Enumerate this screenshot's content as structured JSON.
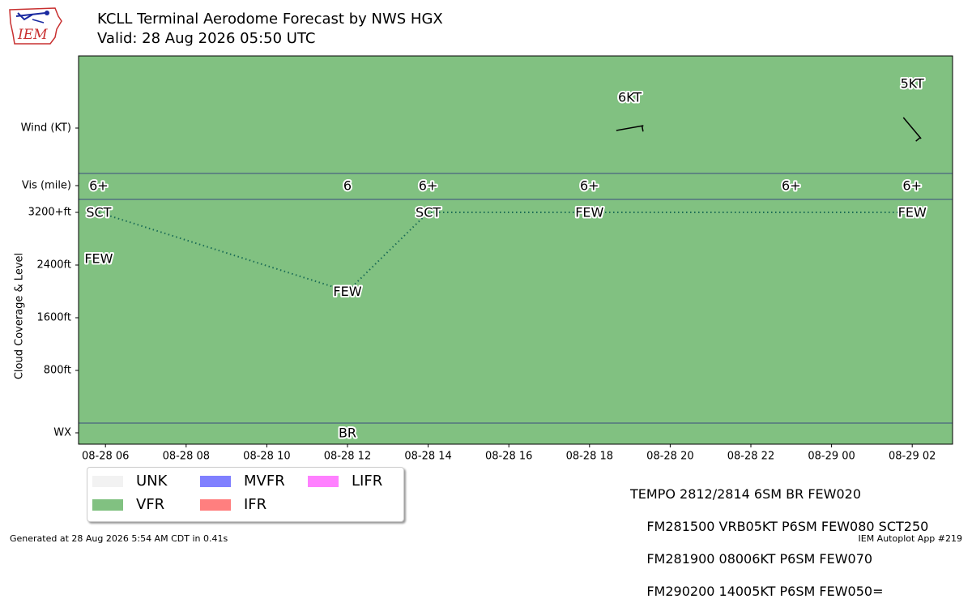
{
  "header": {
    "title": "KCLL Terminal Aerodome Forecast by NWS HGX",
    "subtitle": "Valid: 28 Aug 2026 05:50 UTC"
  },
  "logo": {
    "text": "IEM",
    "icon": "iowa-state-logo-icon"
  },
  "colors": {
    "vfr": "#81c181",
    "unk": "#f2f2f2",
    "mvfr": "#8080ff",
    "ifr": "#ff7f7f",
    "lifr": "#ff80ff",
    "divider": "#3a4a80",
    "cloud_line": "#1a6b55"
  },
  "chart_data": {
    "type": "line",
    "title": "KCLL Terminal Aerodome Forecast by NWS HGX",
    "subtitle": "Valid: 28 Aug 2026 05:50 UTC",
    "ylabel": "Cloud Coverage & Level",
    "row_labels": [
      "Wind (KT)",
      "Vis (mile)",
      "WX"
    ],
    "x_range": [
      "2026-08-28 05:20",
      "2026-08-29 03:00"
    ],
    "x_ticks": [
      "2026-08-28 06:00",
      "2026-08-28 08:00",
      "2026-08-28 10:00",
      "2026-08-28 12:00",
      "2026-08-28 14:00",
      "2026-08-28 16:00",
      "2026-08-28 18:00",
      "2026-08-28 20:00",
      "2026-08-28 22:00",
      "2026-08-29 00:00",
      "2026-08-29 02:00"
    ],
    "x_tick_labels": [
      "08-28 06",
      "08-28 08",
      "08-28 10",
      "08-28 12",
      "08-28 14",
      "08-28 16",
      "08-28 18",
      "08-28 20",
      "08-28 22",
      "08-29 00",
      "08-29 02"
    ],
    "y_ticks": [
      800,
      1600,
      2400,
      3200
    ],
    "y_tick_labels": [
      "800ft",
      "1600ft",
      "2400ft",
      "3200+ft"
    ],
    "ylim": [
      0,
      3200
    ],
    "background_category": "VFR",
    "wind": [
      {
        "x": "2026-08-28 19:00",
        "label": "6KT",
        "direction_deg": 80,
        "speed_kt": 6
      },
      {
        "x": "2026-08-29 02:00",
        "label": "5KT",
        "direction_deg": 140,
        "speed_kt": 5
      }
    ],
    "visibility": [
      {
        "x": "2026-08-28 05:50",
        "label": "6+"
      },
      {
        "x": "2026-08-28 12:00",
        "label": "6"
      },
      {
        "x": "2026-08-28 14:00",
        "label": "6+"
      },
      {
        "x": "2026-08-28 18:00",
        "label": "6+"
      },
      {
        "x": "2026-08-28 23:00",
        "label": "6+"
      },
      {
        "x": "2026-08-29 02:00",
        "label": "6+"
      }
    ],
    "clouds": [
      {
        "x": "2026-08-28 05:50",
        "level_ft": 3200,
        "coverage": "SCT"
      },
      {
        "x": "2026-08-28 05:50",
        "level_ft": 2500,
        "coverage": "FEW"
      },
      {
        "x": "2026-08-28 12:00",
        "level_ft": 2000,
        "coverage": "FEW"
      },
      {
        "x": "2026-08-28 14:00",
        "level_ft": 3200,
        "coverage": "SCT"
      },
      {
        "x": "2026-08-28 18:00",
        "level_ft": 3200,
        "coverage": "FEW"
      },
      {
        "x": "2026-08-29 02:00",
        "level_ft": 3200,
        "coverage": "FEW"
      }
    ],
    "cloud_line": [
      {
        "x": "2026-08-28 05:50",
        "level_ft": 3200
      },
      {
        "x": "2026-08-28 12:00",
        "level_ft": 2000
      },
      {
        "x": "2026-08-28 14:00",
        "level_ft": 3200
      },
      {
        "x": "2026-08-29 02:00",
        "level_ft": 3200
      }
    ],
    "weather": [
      {
        "x": "2026-08-28 12:00",
        "label": "BR"
      }
    ]
  },
  "legend": [
    {
      "label": "UNK",
      "color_key": "unk"
    },
    {
      "label": "MVFR",
      "color_key": "mvfr"
    },
    {
      "label": "LIFR",
      "color_key": "lifr"
    },
    {
      "label": "VFR",
      "color_key": "vfr"
    },
    {
      "label": "IFR",
      "color_key": "ifr"
    }
  ],
  "taf_lines": [
    "TEMPO 2812/2814 6SM BR FEW020",
    "    FM281500 VRB05KT P6SM FEW080 SCT250",
    "    FM281900 08006KT P6SM FEW070",
    "    FM290200 14005KT P6SM FEW050="
  ],
  "footer": {
    "generated": "Generated at 28 Aug 2026 5:54 AM CDT in 0.41s",
    "app": "IEM Autoplot App #219"
  }
}
